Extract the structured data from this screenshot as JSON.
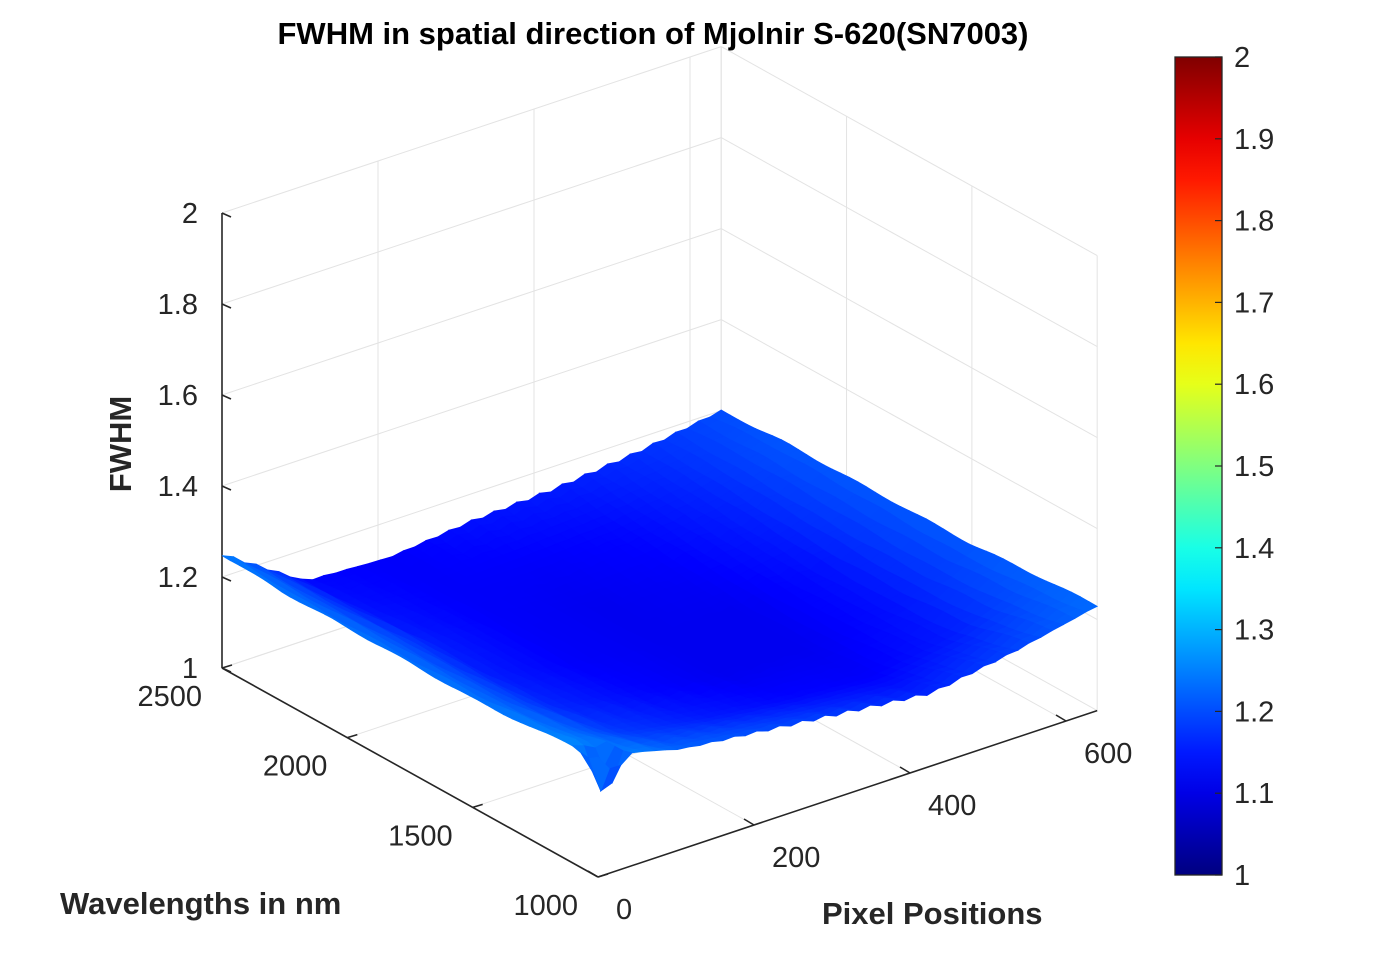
{
  "chart_data": {
    "type": "surface",
    "title": "FWHM in spatial direction of Mjolnir S-620(SN7003)",
    "xlabel": "Pixel Positions",
    "ylabel": "Wavelengths in nm",
    "zlabel": "FWHM",
    "xlim": [
      0,
      640
    ],
    "ylim": [
      1000,
      2500
    ],
    "zlim": [
      1,
      2
    ],
    "x_ticks": [
      "0",
      "200",
      "400",
      "600"
    ],
    "y_ticks": [
      "1000",
      "1500",
      "2000",
      "2500"
    ],
    "z_ticks": [
      "1",
      "1.2",
      "1.4",
      "1.6",
      "1.8",
      "2"
    ],
    "grid": true,
    "colormap": "jet",
    "colorbar": {
      "range": [
        1,
        2
      ],
      "ticks": [
        "1",
        "1.1",
        "1.2",
        "1.3",
        "1.4",
        "1.5",
        "1.6",
        "1.7",
        "1.8",
        "1.9",
        "2"
      ],
      "placement": "right"
    },
    "pixels": [
      0,
      107,
      213,
      320,
      427,
      533,
      640
    ],
    "wavelengths": [
      1000,
      1250,
      1500,
      1750,
      2000,
      2250,
      2500
    ],
    "fwhm": [
      [
        1.27,
        1.22,
        1.2,
        1.18,
        1.16,
        1.19,
        1.23
      ],
      [
        1.25,
        1.18,
        1.15,
        1.13,
        1.12,
        1.15,
        1.22
      ],
      [
        1.24,
        1.16,
        1.13,
        1.11,
        1.11,
        1.14,
        1.21
      ],
      [
        1.24,
        1.15,
        1.12,
        1.11,
        1.11,
        1.14,
        1.21
      ],
      [
        1.24,
        1.15,
        1.12,
        1.11,
        1.12,
        1.15,
        1.21
      ],
      [
        1.24,
        1.14,
        1.12,
        1.12,
        1.13,
        1.16,
        1.21
      ],
      [
        1.25,
        1.13,
        1.12,
        1.14,
        1.15,
        1.17,
        1.2
      ]
    ],
    "spike": {
      "pixel": 20,
      "wavelength": 1040,
      "fwhm": 1.14
    }
  }
}
